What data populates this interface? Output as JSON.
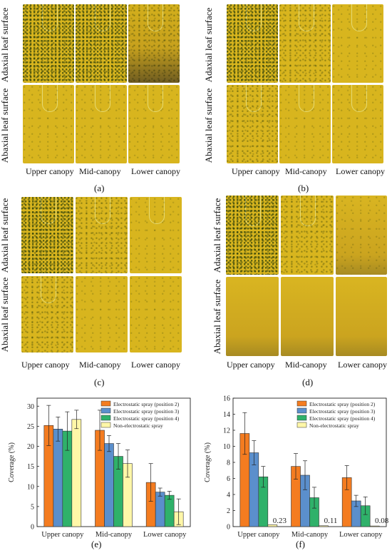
{
  "figure": {
    "row_labels": {
      "adaxial": "Adaxial leaf surface",
      "abaxial": "Abaxial leaf surface"
    },
    "column_labels": [
      "Upper canopy",
      "Mid-canopy",
      "Lower canopy"
    ],
    "panel_labels": {
      "a": "(a)",
      "b": "(b)",
      "c": "(c)",
      "d": "(d)",
      "e": "(e)",
      "f": "(f)"
    }
  },
  "chart_data": [
    {
      "type": "bar",
      "panel": "(e)",
      "title": "",
      "xlabel": "",
      "ylabel": "Coverage (%)",
      "ylim": [
        0,
        32
      ],
      "yticks": [
        0,
        5,
        10,
        15,
        20,
        25,
        30
      ],
      "categories": [
        "Upper canopy",
        "Mid-canopy",
        "Lower canopy"
      ],
      "legend_position": "top-right",
      "series": [
        {
          "name": "Electrostatic spray (position 2)",
          "color": "#f47c20",
          "values": [
            25.2,
            24.0,
            11.0
          ],
          "errors": [
            5.0,
            5.0,
            4.7
          ]
        },
        {
          "name": "Electrostatic spray (position 3)",
          "color": "#5b8fcc",
          "values": [
            24.3,
            20.7,
            8.6
          ],
          "errors": [
            3.0,
            2.0,
            1.0
          ]
        },
        {
          "name": "Electrostatic spray (position 4)",
          "color": "#2fb16a",
          "values": [
            23.8,
            17.5,
            7.8
          ],
          "errors": [
            4.8,
            3.2,
            1.0
          ]
        },
        {
          "name": "Non-electrostatic spray",
          "color": "#fff7a8",
          "values": [
            26.7,
            15.7,
            3.7
          ],
          "errors": [
            2.3,
            3.4,
            3.2
          ]
        }
      ]
    },
    {
      "type": "bar",
      "panel": "(f)",
      "title": "",
      "xlabel": "",
      "ylabel": "Coverage (%)",
      "ylim": [
        0,
        16
      ],
      "yticks": [
        0,
        2,
        4,
        6,
        8,
        10,
        12,
        14,
        16
      ],
      "categories": [
        "Upper canopy",
        "Mid-canopy",
        "Lower canopy"
      ],
      "legend_position": "top-right",
      "value_labels": [
        "0.23",
        "0.11",
        "0.08"
      ],
      "series": [
        {
          "name": "Electrostatic spray (position 2)",
          "color": "#f47c20",
          "values": [
            11.6,
            7.5,
            6.1
          ],
          "errors": [
            2.6,
            1.6,
            1.5
          ]
        },
        {
          "name": "Electrostatic spray (position 3)",
          "color": "#5b8fcc",
          "values": [
            9.2,
            6.4,
            3.2
          ],
          "errors": [
            1.5,
            1.8,
            0.7
          ]
        },
        {
          "name": "Electrostatic spray (position 4)",
          "color": "#2fb16a",
          "values": [
            6.2,
            3.6,
            2.6
          ],
          "errors": [
            1.3,
            1.3,
            1.1
          ]
        },
        {
          "name": "Non-electrostatic spray",
          "color": "#fff7a8",
          "values": [
            0.23,
            0.11,
            0.08
          ],
          "errors": [
            0.0,
            0.0,
            0.0
          ]
        }
      ]
    }
  ]
}
